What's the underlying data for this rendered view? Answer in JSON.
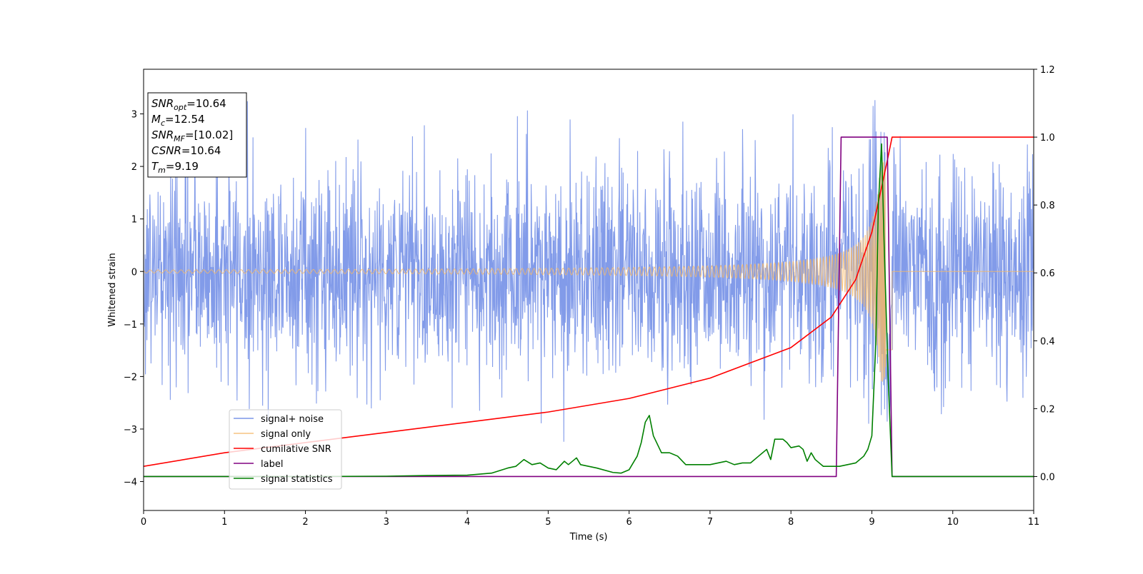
{
  "chart_data": {
    "type": "line",
    "title": "",
    "xlabel": "Time (s)",
    "ylabel": "Whitened strain",
    "y2label": "",
    "xlim": [
      0,
      11
    ],
    "ylim": [
      -4.55,
      3.85
    ],
    "y2lim": [
      -0.1,
      1.2
    ],
    "xticks": [
      0,
      1,
      2,
      3,
      4,
      5,
      6,
      7,
      8,
      9,
      10,
      11
    ],
    "yticks": [
      -4,
      -3,
      -2,
      -1,
      0,
      1,
      2,
      3
    ],
    "y2ticks": [
      0.0,
      0.2,
      0.4,
      0.6,
      0.8,
      1.0,
      1.2
    ],
    "y2tick_labels": [
      "0.0",
      "0.2",
      "0.4",
      "0.6",
      "0.8",
      "1.0",
      "1.2"
    ],
    "grid": false,
    "legend_position": "lower-left",
    "info_box": {
      "position": "top-left",
      "lines": [
        {
          "base": "SNR",
          "sub": "opt",
          "rest": "=10.64"
        },
        {
          "base": "M",
          "sub": "c",
          "rest": "=12.54"
        },
        {
          "base": "SNR",
          "sub": "MF",
          "rest": "=[10.02]"
        },
        {
          "base": "CSNR",
          "sub": "",
          "rest": "=10.64"
        },
        {
          "base": "T",
          "sub": "m",
          "rest": "=9.19"
        }
      ]
    },
    "series": [
      {
        "name": "signal+ noise",
        "axis": "left",
        "color": "#7b96e8",
        "kind": "noise",
        "description_range": [
          -4.2,
          3.5
        ],
        "x_range": [
          0,
          11
        ]
      },
      {
        "name": "signal only",
        "axis": "left",
        "color": "#f5b86a",
        "kind": "chirp",
        "amplitude_start": 0.03,
        "amplitude_peak": 2.1,
        "merger_time": 9.19,
        "x_range": [
          0,
          11
        ]
      },
      {
        "name": "cumilative SNR",
        "axis": "right",
        "color": "#ff0000",
        "x": [
          0,
          1,
          2,
          3,
          4,
          5,
          6,
          7,
          8,
          8.5,
          8.8,
          9.0,
          9.1,
          9.19,
          9.25,
          11
        ],
        "y": [
          0.03,
          0.07,
          0.1,
          0.13,
          0.16,
          0.19,
          0.23,
          0.29,
          0.38,
          0.47,
          0.58,
          0.72,
          0.83,
          0.93,
          1.0,
          1.0
        ]
      },
      {
        "name": "label",
        "axis": "right",
        "color": "#800080",
        "x": [
          0,
          8.56,
          8.62,
          9.19,
          9.25,
          11
        ],
        "y": [
          0.0,
          0.0,
          1.0,
          1.0,
          0.0,
          0.0
        ]
      },
      {
        "name": "signal statistics",
        "axis": "right",
        "color": "#008000",
        "x": [
          0,
          1,
          2,
          3,
          3.5,
          4,
          4.3,
          4.5,
          4.6,
          4.7,
          4.8,
          4.9,
          5.0,
          5.1,
          5.2,
          5.25,
          5.3,
          5.35,
          5.4,
          5.5,
          5.6,
          5.8,
          5.9,
          6.0,
          6.1,
          6.15,
          6.2,
          6.25,
          6.3,
          6.4,
          6.5,
          6.6,
          6.7,
          6.8,
          7.0,
          7.2,
          7.3,
          7.4,
          7.5,
          7.6,
          7.7,
          7.75,
          7.8,
          7.9,
          7.95,
          8.0,
          8.1,
          8.15,
          8.2,
          8.25,
          8.3,
          8.4,
          8.6,
          8.7,
          8.8,
          8.9,
          8.95,
          9.0,
          9.05,
          9.08,
          9.12,
          9.15,
          9.2,
          9.25,
          9.3,
          11
        ],
        "y": [
          0.0,
          0.0,
          0.0,
          0.001,
          0.003,
          0.004,
          0.01,
          0.025,
          0.03,
          0.05,
          0.035,
          0.04,
          0.025,
          0.02,
          0.045,
          0.035,
          0.045,
          0.055,
          0.035,
          0.03,
          0.025,
          0.012,
          0.01,
          0.02,
          0.06,
          0.1,
          0.16,
          0.18,
          0.12,
          0.07,
          0.07,
          0.06,
          0.035,
          0.035,
          0.035,
          0.045,
          0.035,
          0.04,
          0.04,
          0.06,
          0.08,
          0.05,
          0.11,
          0.11,
          0.1,
          0.085,
          0.09,
          0.08,
          0.045,
          0.07,
          0.05,
          0.03,
          0.03,
          0.035,
          0.04,
          0.06,
          0.08,
          0.12,
          0.4,
          0.8,
          0.98,
          0.7,
          0.3,
          0.0,
          0.0,
          0.0
        ]
      }
    ]
  }
}
